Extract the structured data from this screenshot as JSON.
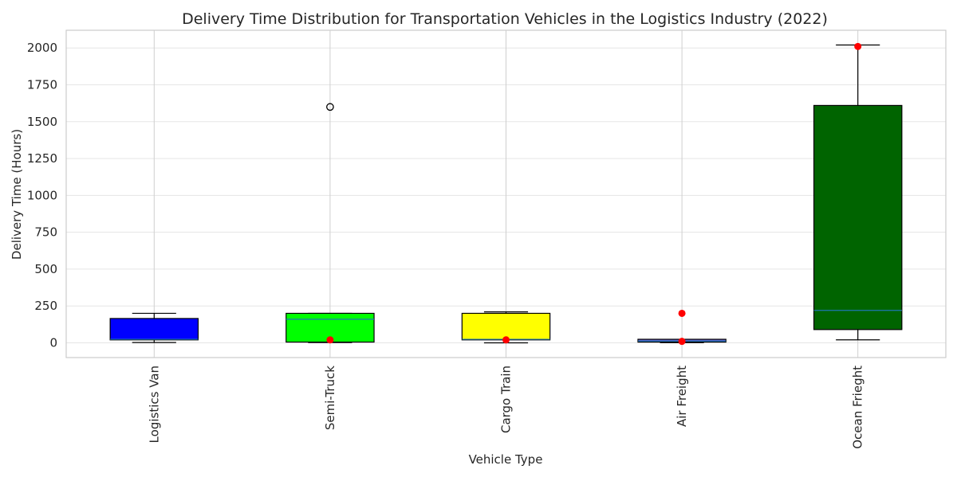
{
  "chart_data": {
    "type": "box",
    "title": "Delivery Time Distribution for Transportation Vehicles in the Logistics Industry (2022)",
    "xlabel": "Vehicle Type",
    "ylabel": "Delivery Time (Hours)",
    "ylim": [
      -100,
      2120
    ],
    "yticks": [
      0,
      250,
      500,
      750,
      1000,
      1250,
      1500,
      1750,
      2000
    ],
    "grid": true,
    "categories": [
      "Logistics Van",
      "Semi-Truck",
      "Cargo Train",
      "Air Freight",
      "Ocean Frieght"
    ],
    "boxes": [
      {
        "category": "Logistics Van",
        "whisker_low": 2,
        "q1": 20,
        "median": 24,
        "q3": 165,
        "whisker_high": 200,
        "color": "#0000ff",
        "outliers": [],
        "red_points": []
      },
      {
        "category": "Semi-Truck",
        "whisker_low": 2,
        "q1": 5,
        "median": 160,
        "q3": 200,
        "whisker_high": 200,
        "color": "#00ff00",
        "outliers": [
          1600
        ],
        "red_points": [
          20
        ]
      },
      {
        "category": "Cargo Train",
        "whisker_low": 0,
        "q1": 20,
        "median": 24,
        "q3": 200,
        "whisker_high": 210,
        "color": "#ffff00",
        "outliers": [],
        "red_points": [
          20
        ]
      },
      {
        "category": "Air Freight",
        "whisker_low": 1,
        "q1": 5,
        "median": 12,
        "q3": 24,
        "whisker_high": 24,
        "color": "#6a5acd",
        "outliers": [],
        "red_points": [
          200,
          10
        ]
      },
      {
        "category": "Ocean Frieght",
        "whisker_low": 20,
        "q1": 90,
        "median": 220,
        "q3": 1610,
        "whisker_high": 2020,
        "color": "#006400",
        "outliers": [],
        "red_points": [
          2010
        ]
      }
    ],
    "median_line_color": "#1f77b4",
    "red_point_color": "#ff0000"
  }
}
